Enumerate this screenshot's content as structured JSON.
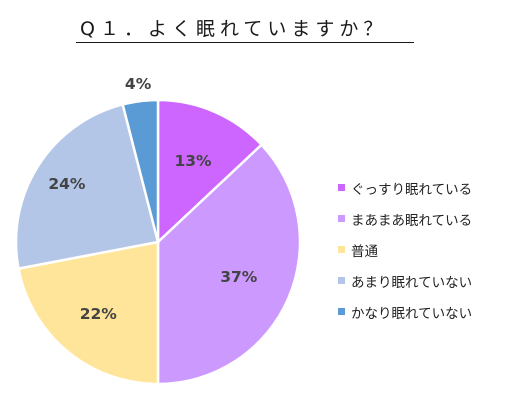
{
  "chart_data": {
    "type": "pie",
    "title": "Q１．よく眠れていますか？",
    "categories": [
      "ぐっすり眠れている",
      "まあまあ眠れている",
      "普通",
      "あまり眠れていない",
      "かなり眠れていない"
    ],
    "values": [
      13,
      37,
      22,
      24,
      4
    ],
    "value_labels": [
      "13%",
      "37%",
      "22%",
      "24%",
      "4%"
    ],
    "colors": [
      "#cc66ff",
      "#cc99ff",
      "#ffe599",
      "#b4c6e7",
      "#5b9bd5"
    ],
    "start": "12 o'clock",
    "direction": "clockwise",
    "legend_position": "right"
  }
}
